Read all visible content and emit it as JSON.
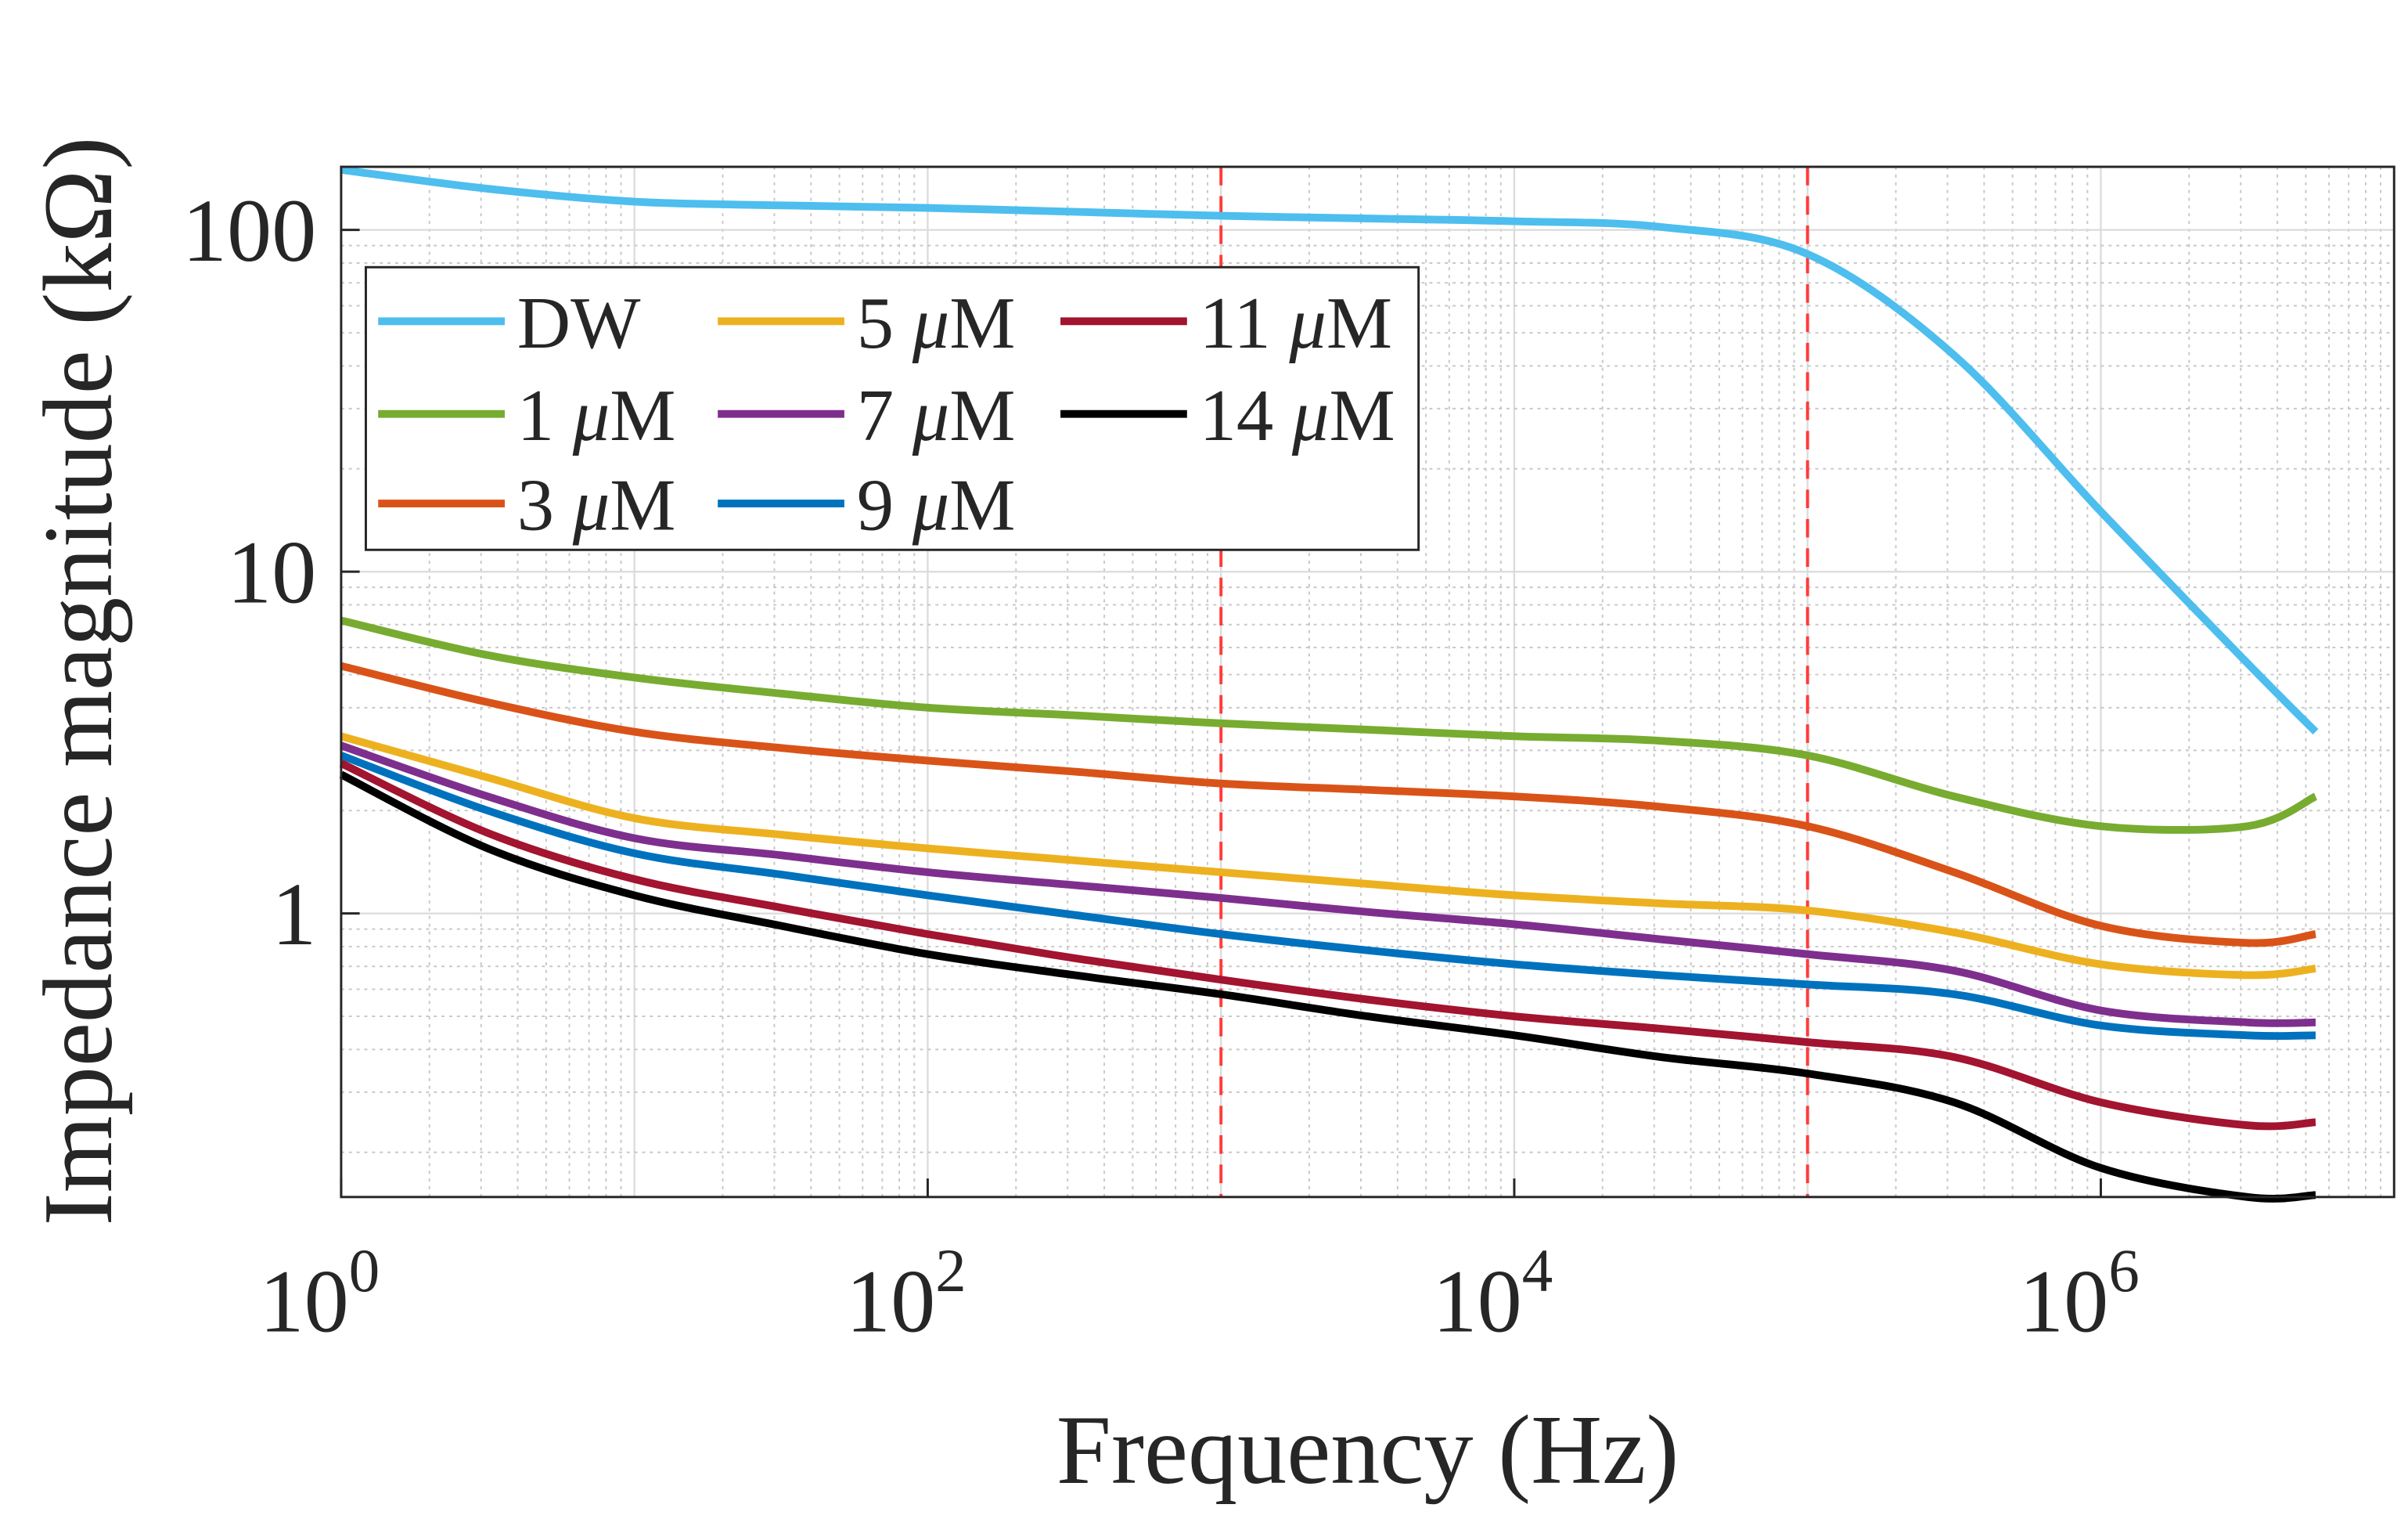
{
  "chart_data": {
    "type": "line",
    "title": "",
    "xlabel": "Frequency (Hz)",
    "ylabel": "Impedance magnitude (kΩ)",
    "xscale": "log",
    "yscale": "log",
    "xlim": [
      1,
      10000000
    ],
    "ylim": [
      0.148,
      153
    ],
    "xticks": [
      {
        "value": 1,
        "base": "10",
        "exp": "0"
      },
      {
        "value": 100,
        "base": "10",
        "exp": "2"
      },
      {
        "value": 10000,
        "base": "10",
        "exp": "4"
      },
      {
        "value": 1000000,
        "base": "10",
        "exp": "6"
      }
    ],
    "yticks": [
      {
        "value": 1,
        "label": "1"
      },
      {
        "value": 10,
        "label": "10"
      },
      {
        "value": 100,
        "label": "100"
      }
    ],
    "grid": true,
    "legend_position": "top-left",
    "vlines": [
      {
        "x": 1000,
        "color": "#FF3B3B",
        "style": "dashed"
      },
      {
        "x": 100000,
        "color": "#FF3B3B",
        "style": "dashed"
      }
    ],
    "x": [
      1,
      3.16,
      10,
      31.6,
      100,
      316,
      1000,
      3160,
      10000,
      31600,
      100000,
      316000,
      1000000,
      3160000,
      5400000
    ],
    "series": [
      {
        "name": "DW",
        "num": "",
        "unit": "",
        "color": "#4DBEEE",
        "values": [
          150,
          132,
          121,
          118,
          116,
          113,
          110,
          108,
          106,
          102,
          85,
          43,
          15,
          5.4,
          3.4
        ]
      },
      {
        "name": "1",
        "num": "1",
        "unit": "μM",
        "color": "#77AC30",
        "values": [
          7.2,
          5.7,
          4.9,
          4.4,
          4.0,
          3.8,
          3.6,
          3.45,
          3.3,
          3.2,
          2.9,
          2.2,
          1.8,
          1.8,
          2.2
        ]
      },
      {
        "name": "3",
        "num": "3",
        "unit": "μM",
        "color": "#D95319",
        "values": [
          5.3,
          4.15,
          3.4,
          3.05,
          2.8,
          2.6,
          2.4,
          2.3,
          2.2,
          2.05,
          1.8,
          1.32,
          0.92,
          0.82,
          0.87
        ]
      },
      {
        "name": "5",
        "num": "5",
        "unit": "μM",
        "color": "#EDB120",
        "values": [
          3.3,
          2.5,
          1.9,
          1.7,
          1.55,
          1.43,
          1.32,
          1.22,
          1.13,
          1.07,
          1.02,
          0.88,
          0.71,
          0.66,
          0.69
        ]
      },
      {
        "name": "7",
        "num": "7",
        "unit": "μM",
        "color": "#7E2F8E",
        "values": [
          3.1,
          2.2,
          1.66,
          1.48,
          1.32,
          1.21,
          1.11,
          1.01,
          0.93,
          0.84,
          0.76,
          0.68,
          0.52,
          0.48,
          0.48
        ]
      },
      {
        "name": "9",
        "num": "9",
        "unit": "μM",
        "color": "#0072BD",
        "values": [
          2.9,
          2.0,
          1.5,
          1.3,
          1.13,
          0.99,
          0.87,
          0.78,
          0.71,
          0.66,
          0.62,
          0.58,
          0.47,
          0.44,
          0.44
        ]
      },
      {
        "name": "11",
        "num": "11",
        "unit": "μM",
        "color": "#A2142F",
        "values": [
          2.75,
          1.72,
          1.26,
          1.04,
          0.87,
          0.74,
          0.64,
          0.56,
          0.5,
          0.46,
          0.42,
          0.38,
          0.28,
          0.24,
          0.245
        ]
      },
      {
        "name": "14",
        "num": "14",
        "unit": "μM",
        "color": "#000000",
        "values": [
          2.55,
          1.55,
          1.13,
          0.92,
          0.76,
          0.66,
          0.58,
          0.5,
          0.44,
          0.38,
          0.34,
          0.28,
          0.18,
          0.148,
          0.15
        ]
      }
    ]
  }
}
